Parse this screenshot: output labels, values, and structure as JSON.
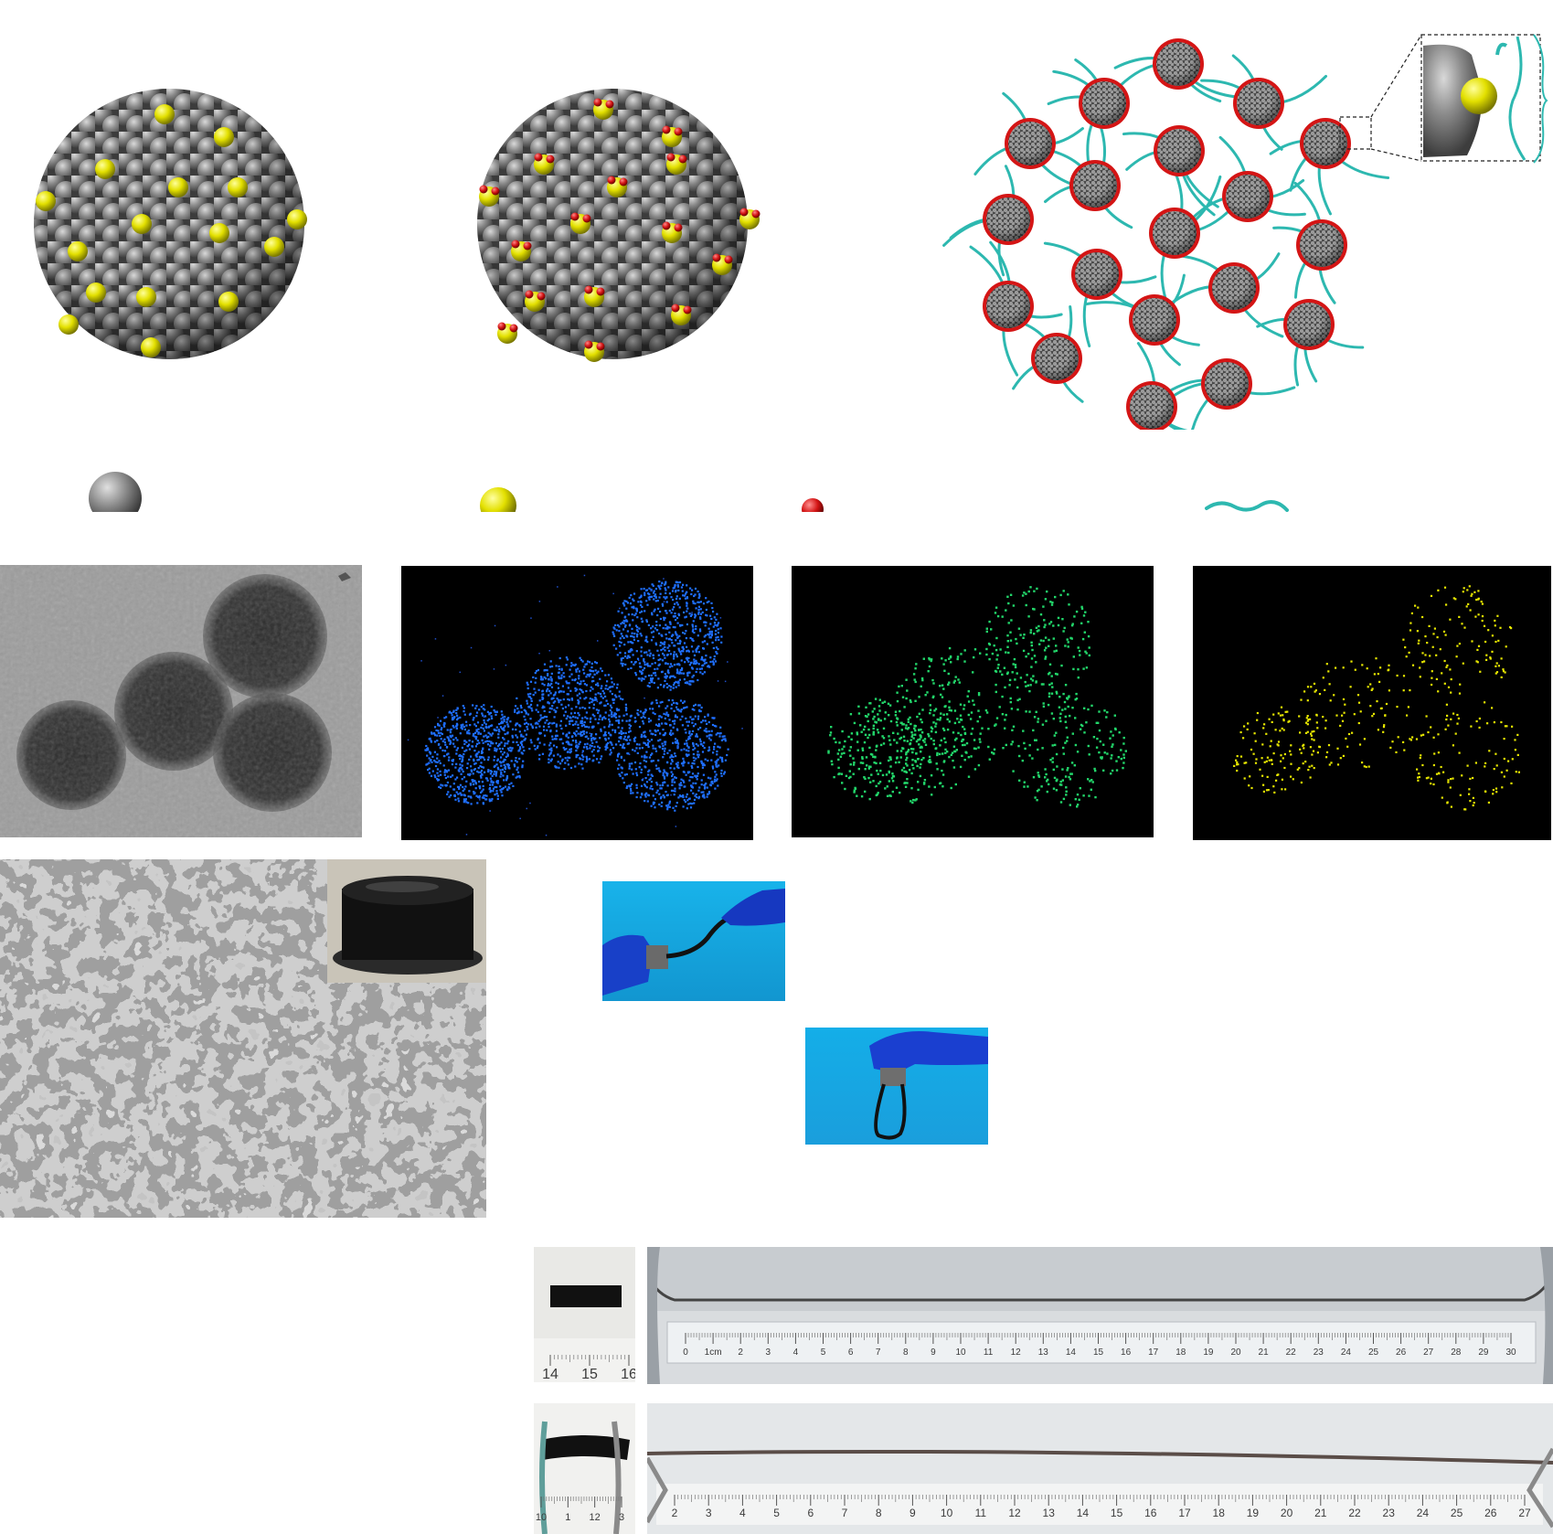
{
  "figure": {
    "colors": {
      "core_grey": "#8a8a8a",
      "dopant_yellow": "#e3e000",
      "ligand_red": "#d41515",
      "polymer_cyan": "#2db8b0",
      "eds_blue": "#1f6fff",
      "eds_green": "#22d66a",
      "eds_yellow": "#e8e800",
      "photo_blue_bg": "#1aa9e6"
    },
    "ruler_a": {
      "small_ticks": [
        "14",
        "15",
        "16"
      ],
      "long_ticks": [
        "0",
        "1cm",
        "2",
        "3",
        "4",
        "5",
        "6",
        "7",
        "8",
        "9",
        "10",
        "11",
        "12",
        "13",
        "14",
        "15",
        "16",
        "17",
        "18",
        "19",
        "20",
        "21",
        "22",
        "23",
        "24",
        "25",
        "26",
        "27",
        "28",
        "29",
        "30"
      ]
    },
    "ruler_b": {
      "small_ticks": [
        "10",
        "1",
        "12",
        "3"
      ],
      "long_ticks": [
        "2",
        "3",
        "4",
        "5",
        "6",
        "7",
        "8",
        "9",
        "10",
        "11",
        "12",
        "13",
        "14",
        "15",
        "16",
        "17",
        "18",
        "19",
        "20",
        "21",
        "22",
        "23",
        "24",
        "25",
        "26",
        "27"
      ]
    },
    "icons": [
      "grey-sphere-icon",
      "yellow-sphere-icon",
      "red-sphere-icon",
      "cyan-chain-icon"
    ]
  }
}
